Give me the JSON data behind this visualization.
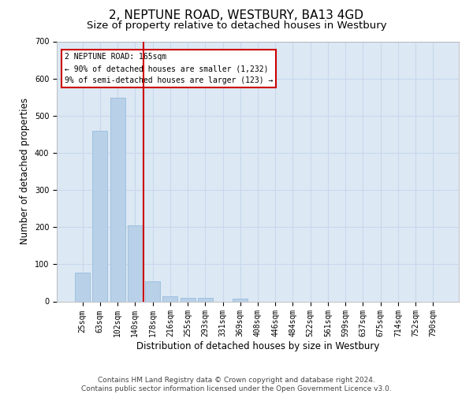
{
  "title": "2, NEPTUNE ROAD, WESTBURY, BA13 4GD",
  "subtitle": "Size of property relative to detached houses in Westbury",
  "xlabel": "Distribution of detached houses by size in Westbury",
  "ylabel": "Number of detached properties",
  "categories": [
    "25sqm",
    "63sqm",
    "102sqm",
    "140sqm",
    "178sqm",
    "216sqm",
    "255sqm",
    "293sqm",
    "331sqm",
    "369sqm",
    "408sqm",
    "446sqm",
    "484sqm",
    "522sqm",
    "561sqm",
    "599sqm",
    "637sqm",
    "675sqm",
    "714sqm",
    "752sqm",
    "790sqm"
  ],
  "values": [
    78,
    460,
    548,
    204,
    55,
    14,
    9,
    9,
    0,
    8,
    0,
    0,
    0,
    0,
    0,
    0,
    0,
    0,
    0,
    0,
    0
  ],
  "bar_color": "#b8d0e8",
  "bar_edge_color": "#90b8d8",
  "grid_color": "#c8d8ec",
  "background_color": "#dce8f4",
  "vline_x": 3.5,
  "vline_color": "#cc0000",
  "annotation_text": "2 NEPTUNE ROAD: 165sqm\n← 90% of detached houses are smaller (1,232)\n9% of semi-detached houses are larger (123) →",
  "annotation_box_color": "#cc0000",
  "ylim": [
    0,
    700
  ],
  "yticks": [
    0,
    100,
    200,
    300,
    400,
    500,
    600,
    700
  ],
  "footnote": "Contains HM Land Registry data © Crown copyright and database right 2024.\nContains public sector information licensed under the Open Government Licence v3.0.",
  "title_fontsize": 11,
  "subtitle_fontsize": 9.5,
  "label_fontsize": 8.5,
  "tick_fontsize": 7,
  "footnote_fontsize": 6.5
}
